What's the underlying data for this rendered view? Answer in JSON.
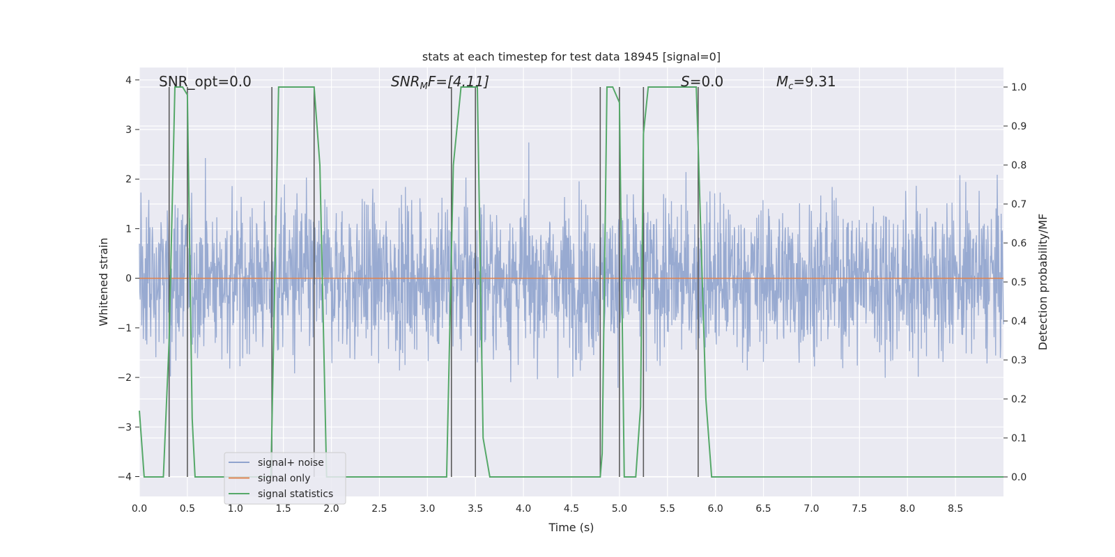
{
  "chart_data": {
    "type": "line",
    "title": "stats at each timestep for test data 18945 [signal=0]",
    "xlabel": "Time (s)",
    "ylabel_left": "Whitened strain",
    "ylabel_right": "Detection probability/MF",
    "xlim": [
      0.0,
      9.0
    ],
    "ylim_left": [
      -4.4,
      4.25
    ],
    "ylim_right": [
      -0.05,
      1.05
    ],
    "x_ticks": [
      "0.0",
      "0.5",
      "1.0",
      "1.5",
      "2.0",
      "2.5",
      "3.0",
      "3.5",
      "4.0",
      "4.5",
      "5.0",
      "5.5",
      "6.0",
      "6.5",
      "7.0",
      "7.5",
      "8.0",
      "8.5"
    ],
    "y_left_ticks": [
      "4",
      "3",
      "2",
      "1",
      "0",
      "−1",
      "−2",
      "−3",
      "−4"
    ],
    "y_right_ticks": [
      "1.0",
      "0.9",
      "0.8",
      "0.7",
      "0.6",
      "0.5",
      "0.4",
      "0.3",
      "0.2",
      "0.1",
      "0.0"
    ],
    "annotations": {
      "snr_opt": "SNR_opt=0.0",
      "snr_mf_sym": "SNR",
      "snr_mf_sub": "M",
      "snr_mf_tail": "F=[4.11]",
      "s_sym": "S",
      "s_tail": "=0.0",
      "mc_sym": "M",
      "mc_sub": "c",
      "mc_tail": "=9.31"
    },
    "grid": true,
    "legend_position": "lower-left",
    "series": [
      {
        "name": "signal+ noise",
        "color": "#8fa3cd",
        "description_value": "noise amplitude ~ within [-4, 4]"
      },
      {
        "name": "signal only",
        "color": "#dd8452",
        "values_constant": 0.0
      },
      {
        "name": "signal statistics",
        "color": "#55a868",
        "x": [
          0.0,
          0.05,
          0.15,
          0.25,
          0.31,
          0.37,
          0.45,
          0.5,
          0.55,
          0.58,
          0.75,
          1.2,
          1.37,
          1.45,
          1.82,
          1.88,
          1.95,
          2.05,
          3.2,
          3.27,
          3.35,
          3.52,
          3.58,
          3.65,
          3.75,
          4.8,
          4.82,
          4.87,
          4.93,
          5.0,
          5.05,
          5.17,
          5.22,
          5.25,
          5.3,
          5.8,
          5.82,
          5.9,
          5.96,
          9.0
        ],
        "values": [
          0.17,
          0.0,
          0.0,
          0.0,
          0.35,
          1.0,
          1.0,
          0.98,
          0.15,
          0.0,
          0.0,
          0.0,
          0.0,
          1.0,
          1.0,
          0.8,
          0.0,
          0.0,
          0.0,
          0.8,
          1.0,
          1.0,
          0.1,
          0.0,
          0.0,
          0.0,
          0.06,
          1.0,
          1.0,
          0.96,
          0.0,
          0.0,
          0.18,
          0.88,
          1.0,
          1.0,
          0.85,
          0.2,
          0.0,
          0.0
        ]
      },
      {
        "name": "",
        "color": "#5a5a5a",
        "type": "vertical_markers",
        "x": [
          0.31,
          0.5,
          1.38,
          1.82,
          3.25,
          3.5,
          4.8,
          5.0,
          5.25,
          5.82
        ]
      }
    ]
  }
}
